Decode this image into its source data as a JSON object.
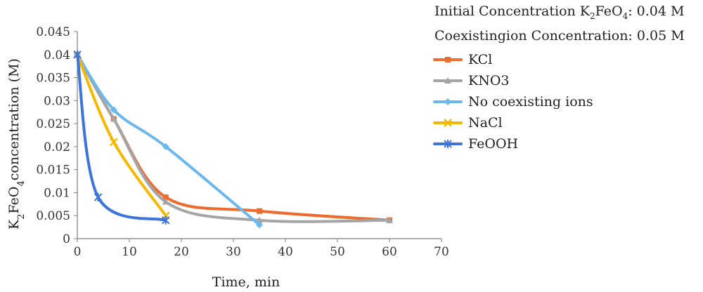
{
  "chart_data": {
    "type": "line",
    "xlabel": "Time, min",
    "ylabel": {
      "text_parts": [
        "K",
        "2",
        "FeO",
        "4",
        "concentration (M)"
      ]
    },
    "xlim": [
      0,
      70
    ],
    "ylim": [
      0,
      0.045
    ],
    "x_ticks": [
      "0",
      "10",
      "20",
      "30",
      "40",
      "50",
      "60",
      "70"
    ],
    "y_ticks": [
      "0",
      "0.005",
      "0.01",
      "0.015",
      "0.02",
      "0.025",
      "0.03",
      "0.035",
      "0.04",
      "0.045"
    ],
    "grid": false,
    "legend_position": "right",
    "notes": [
      {
        "parts": [
          "Initial Concentration K",
          "2",
          "FeO",
          "4",
          ": 0.04 M"
        ]
      },
      {
        "parts": [
          "Coexistingion Concentration: 0.05 M"
        ]
      }
    ],
    "series": [
      {
        "name": "KCl",
        "color": "#ed6b2c",
        "marker": "square",
        "x": [
          0,
          7,
          17,
          35,
          60
        ],
        "y": [
          0.04,
          0.026,
          0.009,
          0.006,
          0.004
        ]
      },
      {
        "name": "KNO3",
        "color": "#a5a5a5",
        "marker": "triangle",
        "x": [
          0,
          7,
          17,
          35,
          60
        ],
        "y": [
          0.04,
          0.026,
          0.008,
          0.004,
          0.004
        ]
      },
      {
        "name": "No coexisting ions",
        "color": "#6cb8ec",
        "marker": "diamond",
        "x": [
          0,
          7,
          17,
          35
        ],
        "y": [
          0.04,
          0.028,
          0.02,
          0.003
        ]
      },
      {
        "name": "NaCl",
        "color": "#f5b800",
        "marker": "x",
        "x": [
          0,
          7,
          17
        ],
        "y": [
          0.04,
          0.021,
          0.005
        ]
      },
      {
        "name": "FeOOH",
        "color": "#3d74dc",
        "marker": "star",
        "x": [
          0,
          4,
          17
        ],
        "y": [
          0.04,
          0.009,
          0.004
        ]
      }
    ]
  }
}
